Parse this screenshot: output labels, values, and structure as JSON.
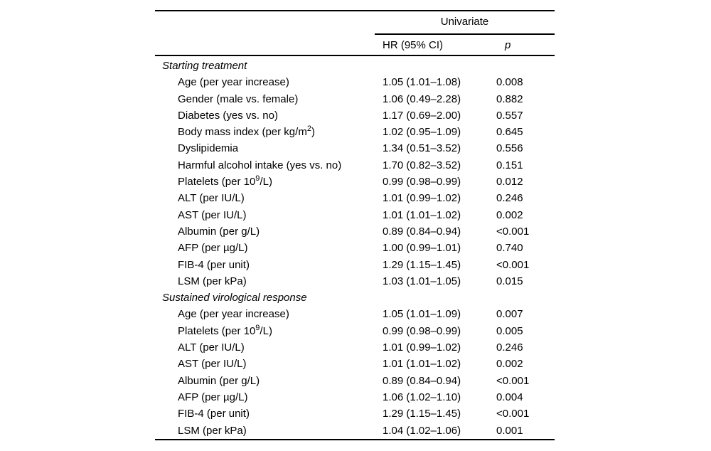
{
  "page": {
    "background": "#ffffff",
    "text_color": "#000000",
    "rule_color": "#000000"
  },
  "table": {
    "header": {
      "group_label": "Univariate",
      "hr_col": "HR (95% CI)",
      "p_col": "p"
    },
    "sections": [
      {
        "title": "Starting treatment",
        "rows": [
          {
            "label": "Age (per year increase)",
            "hr": "1.05 (1.01–1.08)",
            "p": "0.008"
          },
          {
            "label": "Gender (male vs. female)",
            "hr": "1.06 (0.49–2.28)",
            "p": "0.882"
          },
          {
            "label": "Diabetes (yes vs. no)",
            "hr": "1.17 (0.69–2.00)",
            "p": "0.557"
          },
          {
            "label": "Body mass index (per kg/m²)",
            "hr": "1.02 (0.95–1.09)",
            "p": "0.645"
          },
          {
            "label": "Dyslipidemia",
            "hr": "1.34 (0.51–3.52)",
            "p": "0.556"
          },
          {
            "label": "Harmful alcohol intake (yes vs. no)",
            "hr": "1.70 (0.82–3.52)",
            "p": "0.151"
          },
          {
            "label": "Platelets (per 10⁹/L)",
            "hr": "0.99 (0.98–0.99)",
            "p": "0.012"
          },
          {
            "label": "ALT (per IU/L)",
            "hr": "1.01 (0.99–1.02)",
            "p": "0.246"
          },
          {
            "label": "AST (per IU/L)",
            "hr": "1.01 (1.01–1.02)",
            "p": "0.002"
          },
          {
            "label": "Albumin (per g/L)",
            "hr": "0.89 (0.84–0.94)",
            "p": "<0.001"
          },
          {
            "label": "AFP (per µg/L)",
            "hr": "1.00 (0.99–1.01)",
            "p": "0.740"
          },
          {
            "label": "FIB-4 (per unit)",
            "hr": "1.29 (1.15–1.45)",
            "p": "<0.001"
          },
          {
            "label": "LSM (per kPa)",
            "hr": "1.03 (1.01–1.05)",
            "p": "0.015"
          }
        ]
      },
      {
        "title": "Sustained virological response",
        "rows": [
          {
            "label": "Age (per year increase)",
            "hr": "1.05 (1.01–1.09)",
            "p": "0.007"
          },
          {
            "label": "Platelets (per 10⁹/L)",
            "hr": "0.99 (0.98–0.99)",
            "p": "0.005"
          },
          {
            "label": "ALT (per IU/L)",
            "hr": "1.01 (0.99–1.02)",
            "p": "0.246"
          },
          {
            "label": "AST (per IU/L)",
            "hr": "1.01 (1.01–1.02)",
            "p": "0.002"
          },
          {
            "label": "Albumin (per g/L)",
            "hr": "0.89 (0.84–0.94)",
            "p": "<0.001"
          },
          {
            "label": "AFP (per µg/L)",
            "hr": "1.06 (1.02–1.10)",
            "p": "0.004"
          },
          {
            "label": "FIB-4 (per unit)",
            "hr": "1.29 (1.15–1.45)",
            "p": "<0.001"
          },
          {
            "label": "LSM (per kPa)",
            "hr": "1.04 (1.02–1.06)",
            "p": "0.001"
          }
        ]
      }
    ]
  }
}
